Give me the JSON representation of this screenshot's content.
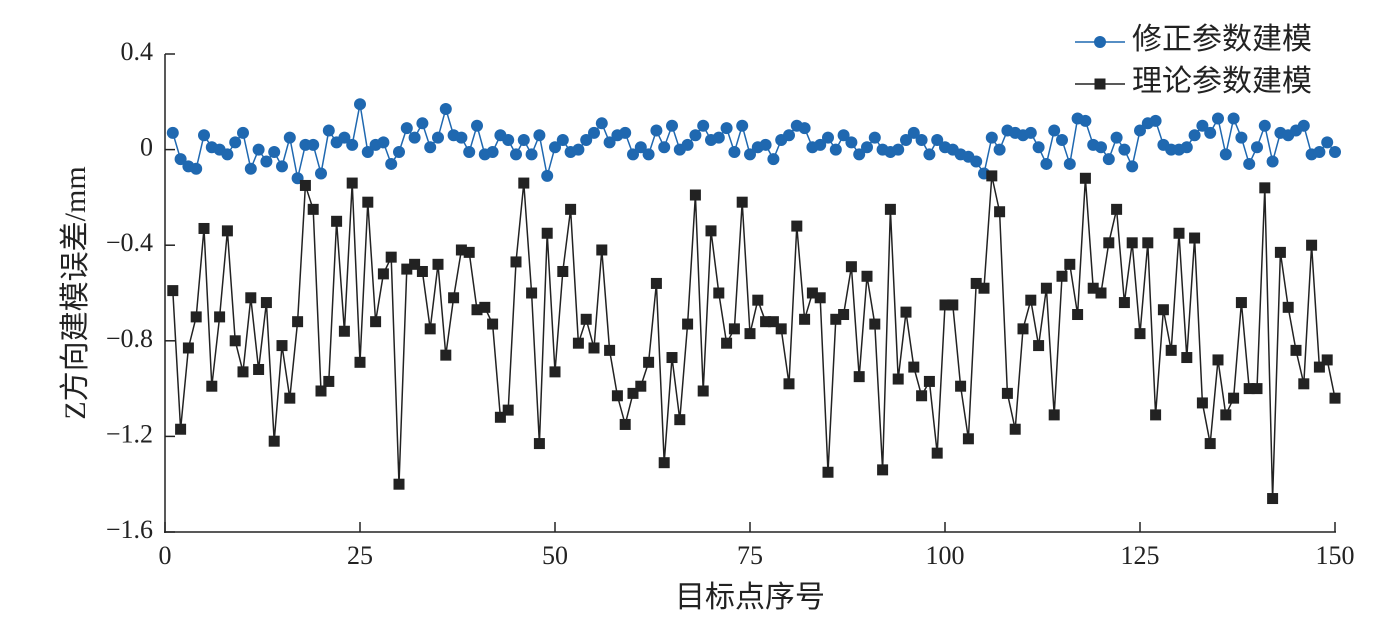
{
  "chart_data": {
    "type": "line",
    "xlabel": "目标点序号",
    "ylabel": "Z方向建模误差/mm",
    "x": [
      1,
      2,
      3,
      4,
      5,
      6,
      7,
      8,
      9,
      10,
      11,
      12,
      13,
      14,
      15,
      16,
      17,
      18,
      19,
      20,
      21,
      22,
      23,
      24,
      25,
      26,
      27,
      28,
      29,
      30,
      31,
      32,
      33,
      34,
      35,
      36,
      37,
      38,
      39,
      40,
      41,
      42,
      43,
      44,
      45,
      46,
      47,
      48,
      49,
      50,
      51,
      52,
      53,
      54,
      55,
      56,
      57,
      58,
      59,
      60,
      61,
      62,
      63,
      64,
      65,
      66,
      67,
      68,
      69,
      70,
      71,
      72,
      73,
      74,
      75,
      76,
      77,
      78,
      79,
      80,
      81,
      82,
      83,
      84,
      85,
      86,
      87,
      88,
      89,
      90,
      91,
      92,
      93,
      94,
      95,
      96,
      97,
      98,
      99,
      100,
      101,
      102,
      103,
      104,
      105,
      106,
      107,
      108,
      109,
      110,
      111,
      112,
      113,
      114,
      115,
      116,
      117,
      118,
      119,
      120,
      121,
      122,
      123,
      124,
      125,
      126,
      127,
      128,
      129,
      130,
      131,
      132,
      133,
      134,
      135,
      136,
      137,
      138,
      139,
      140,
      141,
      142,
      143,
      144,
      145,
      146,
      147,
      148,
      149,
      150
    ],
    "series": [
      {
        "name": "修正参数建模",
        "color": "#1f68b0",
        "marker": "circle",
        "values": [
          0.07,
          -0.04,
          -0.07,
          -0.08,
          0.06,
          0.01,
          0.0,
          -0.02,
          0.03,
          0.07,
          -0.08,
          0.0,
          -0.05,
          -0.01,
          -0.07,
          0.05,
          -0.12,
          0.02,
          0.02,
          -0.1,
          0.08,
          0.03,
          0.05,
          0.02,
          0.19,
          -0.01,
          0.02,
          0.03,
          -0.06,
          -0.01,
          0.09,
          0.05,
          0.11,
          0.01,
          0.05,
          0.17,
          0.06,
          0.05,
          -0.01,
          0.1,
          -0.02,
          -0.01,
          0.06,
          0.04,
          -0.02,
          0.04,
          -0.02,
          0.06,
          -0.11,
          0.01,
          0.04,
          -0.01,
          0.0,
          0.04,
          0.07,
          0.11,
          0.03,
          0.06,
          0.07,
          -0.02,
          0.01,
          -0.02,
          0.08,
          0.01,
          0.1,
          0.0,
          0.02,
          0.06,
          0.1,
          0.04,
          0.05,
          0.09,
          -0.01,
          0.1,
          -0.02,
          0.01,
          0.02,
          -0.04,
          0.04,
          0.06,
          0.1,
          0.09,
          0.01,
          0.02,
          0.05,
          0.0,
          0.06,
          0.03,
          -0.02,
          0.01,
          0.05,
          0.0,
          -0.01,
          0.0,
          0.04,
          0.07,
          0.04,
          -0.02,
          0.04,
          0.01,
          0.0,
          -0.02,
          -0.03,
          -0.05,
          -0.1,
          0.05,
          0.0,
          0.08,
          0.07,
          0.06,
          0.07,
          0.01,
          -0.06,
          0.08,
          0.04,
          -0.06,
          0.13,
          0.12,
          0.02,
          0.01,
          -0.04,
          0.05,
          0.0,
          -0.07,
          0.08,
          0.11,
          0.12,
          0.02,
          0.0,
          0.0,
          0.01,
          0.06,
          0.1,
          0.07,
          0.13,
          -0.02,
          0.13,
          0.05,
          -0.06,
          0.01,
          0.1,
          -0.05,
          0.07,
          0.06,
          0.08,
          0.1,
          -0.02,
          -0.01,
          0.03,
          -0.01
        ]
      },
      {
        "name": "理论参数建模",
        "color": "#222222",
        "marker": "square",
        "values": [
          -0.59,
          -1.17,
          -0.83,
          -0.7,
          -0.33,
          -0.99,
          -0.7,
          -0.34,
          -0.8,
          -0.93,
          -0.62,
          -0.92,
          -0.64,
          -1.22,
          -0.82,
          -1.04,
          -0.72,
          -0.15,
          -0.25,
          -1.01,
          -0.97,
          -0.3,
          -0.76,
          -0.14,
          -0.89,
          -0.22,
          -0.72,
          -0.52,
          -0.45,
          -1.4,
          -0.5,
          -0.48,
          -0.51,
          -0.75,
          -0.48,
          -0.86,
          -0.62,
          -0.42,
          -0.43,
          -0.67,
          -0.66,
          -0.73,
          -1.12,
          -1.09,
          -0.47,
          -0.14,
          -0.6,
          -1.23,
          -0.35,
          -0.93,
          -0.51,
          -0.25,
          -0.81,
          -0.71,
          -0.83,
          -0.42,
          -0.84,
          -1.03,
          -1.15,
          -1.02,
          -0.99,
          -0.89,
          -0.56,
          -1.31,
          -0.87,
          -1.13,
          -0.73,
          -0.19,
          -1.01,
          -0.34,
          -0.6,
          -0.81,
          -0.75,
          -0.22,
          -0.77,
          -0.63,
          -0.72,
          -0.72,
          -0.75,
          -0.98,
          -0.32,
          -0.71,
          -0.6,
          -0.62,
          -1.35,
          -0.71,
          -0.69,
          -0.49,
          -0.95,
          -0.53,
          -0.73,
          -1.34,
          -0.25,
          -0.96,
          -0.68,
          -0.91,
          -1.03,
          -0.97,
          -1.27,
          -0.65,
          -0.65,
          -0.99,
          -1.21,
          -0.56,
          -0.58,
          -0.11,
          -0.26,
          -1.02,
          -1.17,
          -0.75,
          -0.63,
          -0.82,
          -0.58,
          -1.11,
          -0.53,
          -0.48,
          -0.69,
          -0.12,
          -0.58,
          -0.6,
          -0.39,
          -0.25,
          -0.64,
          -0.39,
          -0.77,
          -0.39,
          -1.11,
          -0.67,
          -0.84,
          -0.35,
          -0.87,
          -0.37,
          -1.06,
          -1.23,
          -0.88,
          -1.11,
          -1.04,
          -0.64,
          -1.0,
          -1.0,
          -0.16,
          -1.46,
          -0.43,
          -0.66,
          -0.84,
          -0.98,
          -0.4,
          -0.91,
          -0.88,
          -1.04
        ]
      }
    ],
    "xlim": [
      0,
      150
    ],
    "xticks": [
      0,
      25,
      50,
      75,
      100,
      125,
      150
    ],
    "ylim": [
      -1.6,
      0.4
    ],
    "yticks": [
      0.4,
      0,
      {
        "value": -0.4,
        "label": "−0.4"
      },
      {
        "value": -0.8,
        "label": "−0.8"
      },
      {
        "value": -1.2,
        "label": "−1.2"
      },
      {
        "value": -1.6,
        "label": "−1.6"
      }
    ],
    "legend": "upper right",
    "grid": false
  }
}
